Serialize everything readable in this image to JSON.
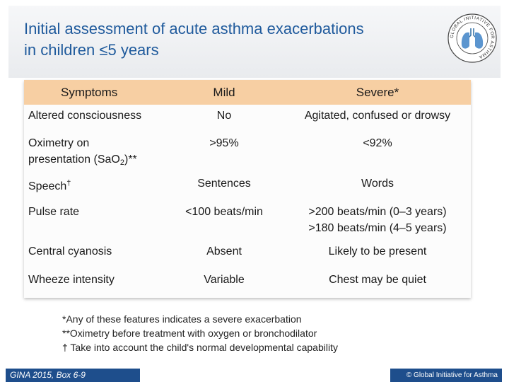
{
  "header": {
    "title_line1": "Initial assessment of acute asthma exacerbations",
    "title_line2": "in children ≤5 years",
    "logo_text": "GLOBAL INITIATIVE FOR ASTHMA"
  },
  "table": {
    "headers": [
      "Symptoms",
      "Mild",
      "Severe*"
    ],
    "rows": [
      {
        "symptom": "Altered consciousness",
        "mild": "No",
        "severe": "Agitated, confused or drowsy"
      },
      {
        "symptom_line1": "Oximetry on",
        "symptom_line2_pre": "presentation (SaO",
        "symptom_sub": "2",
        "symptom_post": ")**",
        "mild": ">95%",
        "severe": "<92%"
      },
      {
        "symptom": "Speech",
        "symptom_sup": "†",
        "mild": "Sentences",
        "severe": "Words"
      },
      {
        "symptom": "Pulse rate",
        "mild": "<100 beats/min",
        "severe_line1": ">200 beats/min (0–3 years)",
        "severe_line2": ">180 beats/min (4–5 years)"
      },
      {
        "symptom": "Central cyanosis",
        "mild": "Absent",
        "severe": "Likely to be present"
      },
      {
        "symptom": "Wheeze intensity",
        "mild": "Variable",
        "severe": "Chest may be quiet"
      }
    ]
  },
  "notes": [
    "*Any of these features indicates a severe exacerbation",
    "**Oximetry before treatment with oxygen or bronchodilator",
    "† Take into account the child's normal developmental capability"
  ],
  "footer": {
    "left": "GINA 2015, Box 6-9",
    "right": "© Global Initiative for Asthma"
  },
  "colors": {
    "title": "#1f5a9c",
    "header_row": "#f7cfa3",
    "footer": "#1e4e8c"
  }
}
